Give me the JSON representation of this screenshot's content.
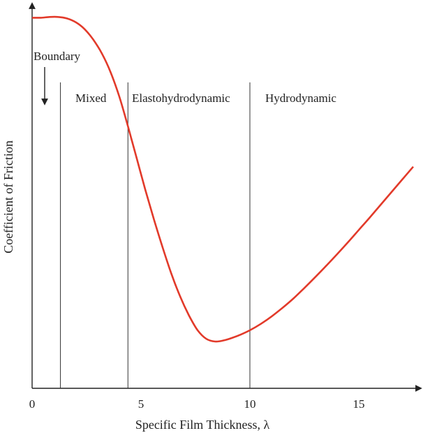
{
  "chart_data": {
    "type": "line",
    "title": "",
    "xlabel": "Specific Film Thickness, λ",
    "ylabel": "Coefficient of Friction",
    "xlim": [
      0,
      17.5
    ],
    "ylim": [
      0,
      10
    ],
    "x_ticks": [
      "0",
      "5",
      "10",
      "15"
    ],
    "x_tick_values": [
      0,
      5,
      10,
      15
    ],
    "y_ticks_visible": false,
    "grid": false,
    "series": [
      {
        "color": "#e23a2a",
        "x": [
          0,
          0.4,
          0.8,
          1.2,
          1.6,
          2.0,
          2.4,
          2.8,
          3.2,
          3.6,
          4.0,
          4.4,
          4.8,
          5.2,
          5.6,
          6.0,
          6.4,
          6.8,
          7.2,
          7.6,
          8.0,
          8.4,
          8.8,
          9.2,
          9.6,
          10.0,
          10.5,
          11.0,
          11.5,
          12.0,
          12.5,
          13.0,
          13.5,
          14.0,
          14.5,
          15.0,
          15.5,
          16.0,
          16.5,
          17.0,
          17.5
        ],
        "y": [
          9.9,
          9.9,
          9.92,
          9.92,
          9.88,
          9.78,
          9.6,
          9.32,
          8.95,
          8.45,
          7.8,
          7.0,
          6.15,
          5.3,
          4.5,
          3.75,
          3.05,
          2.45,
          1.95,
          1.55,
          1.32,
          1.25,
          1.28,
          1.35,
          1.44,
          1.55,
          1.72,
          1.92,
          2.15,
          2.4,
          2.68,
          2.97,
          3.27,
          3.58,
          3.9,
          4.23,
          4.56,
          4.9,
          5.24,
          5.58,
          5.92
        ]
      }
    ],
    "regions": [
      {
        "label": "Boundary",
        "x_end": 1.3
      },
      {
        "label": "Mixed",
        "x_end": 4.4
      },
      {
        "label": "Elastohydrodynamic",
        "x_end": 10.0
      },
      {
        "label": "Hydrodynamic",
        "x_end": 17.5
      }
    ]
  }
}
